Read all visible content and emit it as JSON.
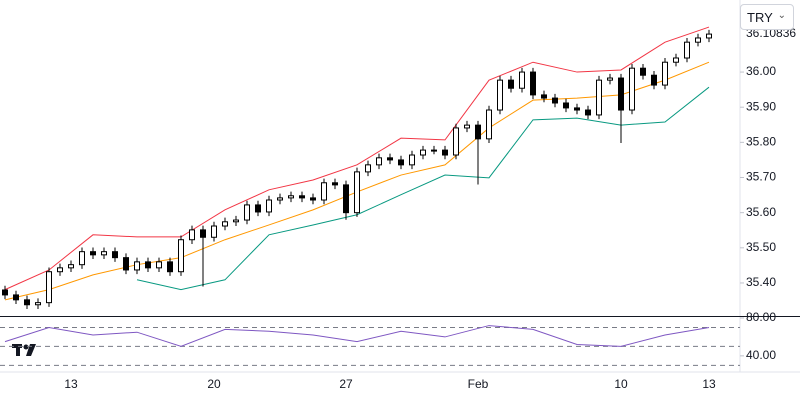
{
  "chart_data": {
    "type": "candlestick",
    "currency": "TRY",
    "last_price": 36.10836,
    "up_color": "#ffffff",
    "down_color": "#000000",
    "open": [
      35.38,
      35.366,
      35.352,
      35.338,
      35.344,
      35.432,
      35.443,
      35.452,
      35.489,
      35.48,
      35.489,
      35.472,
      35.437,
      35.46,
      35.443,
      35.46,
      35.432,
      35.523,
      35.551,
      35.53,
      35.562,
      35.574,
      35.579,
      35.622,
      35.602,
      35.636,
      35.642,
      35.648,
      35.642,
      35.636,
      35.685,
      35.679,
      35.6,
      35.716,
      35.736,
      35.756,
      35.75,
      35.736,
      35.764,
      35.778,
      35.778,
      35.764,
      35.841,
      35.849,
      35.81,
      35.892,
      35.977,
      35.954,
      36.0,
      35.935,
      35.926,
      35.912,
      35.898,
      35.892,
      35.878,
      35.977,
      35.983,
      35.892,
      36.011,
      35.991,
      35.963,
      36.028,
      36.04,
      36.085,
      36.097
    ],
    "high": [
      35.392,
      35.378,
      35.364,
      35.356,
      35.444,
      35.455,
      35.464,
      35.501,
      35.501,
      35.501,
      35.501,
      35.484,
      35.472,
      35.472,
      35.472,
      35.472,
      35.535,
      35.563,
      35.563,
      35.574,
      35.586,
      35.591,
      35.634,
      35.634,
      35.648,
      35.654,
      35.66,
      35.66,
      35.654,
      35.697,
      35.697,
      35.691,
      35.728,
      35.748,
      35.768,
      35.768,
      35.762,
      35.776,
      35.79,
      35.79,
      35.79,
      35.853,
      35.861,
      35.861,
      35.904,
      35.989,
      35.989,
      36.012,
      36.012,
      35.947,
      35.938,
      35.924,
      35.91,
      35.904,
      35.989,
      35.995,
      35.995,
      36.023,
      36.023,
      36.003,
      36.04,
      36.052,
      36.097,
      36.109,
      36.12
    ],
    "low": [
      35.354,
      35.34,
      35.326,
      35.326,
      35.332,
      35.42,
      35.431,
      35.44,
      35.468,
      35.468,
      35.46,
      35.425,
      35.425,
      35.431,
      35.431,
      35.42,
      35.42,
      35.511,
      35.39,
      35.518,
      35.55,
      35.562,
      35.567,
      35.59,
      35.59,
      35.624,
      35.63,
      35.63,
      35.624,
      35.624,
      35.667,
      35.58,
      35.588,
      35.704,
      35.724,
      35.738,
      35.724,
      35.724,
      35.752,
      35.766,
      35.752,
      35.752,
      35.829,
      35.68,
      35.798,
      35.88,
      35.942,
      35.942,
      35.923,
      35.914,
      35.9,
      35.886,
      35.88,
      35.866,
      35.866,
      35.965,
      35.798,
      35.88,
      35.979,
      35.951,
      35.951,
      36.016,
      36.028,
      36.073,
      36.085
    ],
    "close": [
      35.366,
      35.352,
      35.338,
      35.344,
      35.432,
      35.443,
      35.452,
      35.489,
      35.48,
      35.489,
      35.472,
      35.437,
      35.46,
      35.443,
      35.46,
      35.432,
      35.523,
      35.551,
      35.53,
      35.562,
      35.574,
      35.579,
      35.622,
      35.602,
      35.636,
      35.642,
      35.648,
      35.642,
      35.636,
      35.685,
      35.679,
      35.6,
      35.716,
      35.736,
      35.756,
      35.75,
      35.736,
      35.764,
      35.778,
      35.778,
      35.764,
      35.841,
      35.849,
      35.81,
      35.892,
      35.977,
      35.954,
      36.0,
      35.935,
      35.926,
      35.912,
      35.898,
      35.892,
      35.878,
      35.977,
      35.983,
      35.892,
      36.011,
      35.991,
      35.963,
      36.028,
      36.04,
      36.085,
      36.097,
      36.108
    ],
    "indicator_x": [
      0,
      4,
      8,
      12,
      16,
      20,
      24,
      28,
      32,
      36,
      40,
      44,
      48,
      52,
      56,
      60,
      64
    ],
    "bands": [
      {
        "color": "#f23645",
        "values": [
          35.381,
          35.437,
          35.537,
          35.531,
          35.531,
          35.608,
          35.665,
          35.693,
          35.736,
          35.812,
          35.807,
          35.977,
          36.028,
          36.0,
          36.006,
          36.085,
          36.128
        ]
      },
      {
        "color": "#ff9800",
        "values": [
          35.352,
          35.381,
          35.423,
          35.452,
          35.472,
          35.523,
          35.565,
          35.608,
          35.659,
          35.707,
          35.736,
          35.841,
          35.92,
          35.926,
          35.935,
          35.977,
          36.028
        ]
      },
      {
        "color": "#089981",
        "values": [
          null,
          null,
          null,
          35.409,
          35.381,
          35.409,
          35.537,
          35.565,
          35.594,
          35.651,
          35.707,
          35.699,
          35.864,
          35.869,
          35.849,
          35.858,
          35.957
        ]
      }
    ],
    "ylim": [
      35.306,
      36.205
    ],
    "yticks": [
      {
        "value": 35.4,
        "label": "35.40"
      },
      {
        "value": 35.5,
        "label": "35.50"
      },
      {
        "value": 35.6,
        "label": "35.60"
      },
      {
        "value": 35.7,
        "label": "35.70"
      },
      {
        "value": 35.8,
        "label": "35.80"
      },
      {
        "value": 35.9,
        "label": "35.90"
      },
      {
        "value": 36,
        "label": "36.00"
      }
    ],
    "xticks": [
      {
        "value": 6,
        "label": "13"
      },
      {
        "value": 19,
        "label": "20"
      },
      {
        "value": 31,
        "label": "27"
      },
      {
        "value": 43,
        "label": "Feb"
      },
      {
        "value": 56,
        "label": "10"
      },
      {
        "value": 64,
        "label": "13"
      }
    ],
    "rsi": {
      "color": "#7e57c2",
      "values": [
        55,
        70,
        62,
        65,
        50,
        68,
        66,
        62,
        55,
        66,
        60,
        72,
        68,
        52,
        50,
        62,
        70
      ],
      "ylim": [
        24,
        80
      ],
      "yticks": [
        {
          "value": 80,
          "label": "80.00"
        },
        {
          "value": 40,
          "label": "40.00"
        }
      ],
      "levels": [
        70,
        50,
        30
      ]
    }
  }
}
